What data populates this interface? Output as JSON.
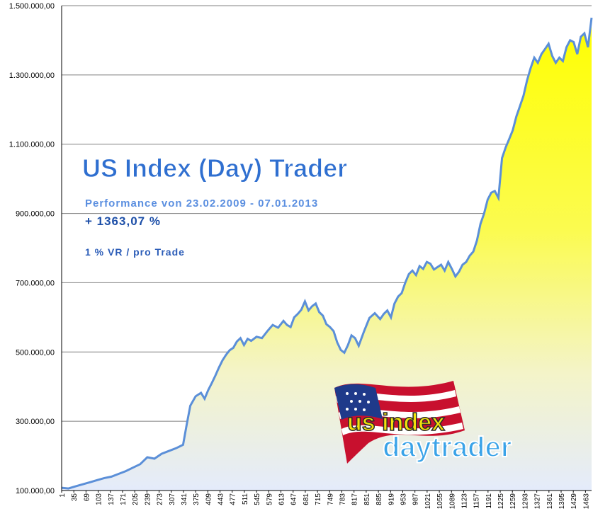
{
  "chart_data": {
    "type": "area",
    "title": "US Index (Day) Trader",
    "subtitle": "Performance  von  23.02.2009 - 07.01.2013",
    "performance": "+ 1363,07 %",
    "risk_note": "1 % VR / pro Trade",
    "logo_text_top": "us index",
    "logo_text_bottom": "daytrader",
    "ylim": [
      100000,
      1500000
    ],
    "xlim": [
      1,
      1480
    ],
    "y_ticks": [
      "100.000,00",
      "300.000,00",
      "500.000,00",
      "700.000,00",
      "900.000,00",
      "1.100.000,00",
      "1.300.000,00",
      "1.500.000,00"
    ],
    "y_tick_values": [
      100000,
      300000,
      500000,
      700000,
      900000,
      1100000,
      1300000,
      1500000
    ],
    "x_ticks": [
      "1",
      "35",
      "69",
      "103",
      "137",
      "171",
      "205",
      "239",
      "273",
      "307",
      "341",
      "375",
      "409",
      "443",
      "477",
      "511",
      "545",
      "579",
      "613",
      "647",
      "681",
      "715",
      "749",
      "783",
      "817",
      "851",
      "885",
      "919",
      "953",
      "987",
      "1021",
      "1055",
      "1089",
      "1123",
      "1157",
      "1191",
      "1225",
      "1259",
      "1293",
      "1327",
      "1361",
      "1395",
      "1429",
      "1463"
    ],
    "grid": true,
    "legend": "none",
    "colors": {
      "line": "#5b8fd8",
      "fill_top": "#ffff00",
      "fill_bottom": "#e8eefc",
      "grid": "#808080"
    },
    "series": [
      {
        "x": [
          1,
          20,
          40,
          60,
          80,
          100,
          120,
          140,
          160,
          180,
          200,
          220,
          240,
          260,
          280,
          300,
          320,
          340,
          350,
          360,
          375,
          390,
          400,
          410,
          420,
          430,
          440,
          450,
          460,
          470,
          480,
          490,
          500,
          510,
          520,
          530,
          545,
          560,
          575,
          590,
          605,
          620,
          630,
          640,
          650,
          660,
          670,
          680,
          690,
          700,
          710,
          720,
          730,
          740,
          750,
          760,
          770,
          780,
          790,
          800,
          810,
          820,
          830,
          845,
          860,
          875,
          890,
          900,
          910,
          920,
          930,
          940,
          950,
          960,
          970,
          980,
          990,
          1000,
          1010,
          1020,
          1030,
          1040,
          1050,
          1060,
          1070,
          1080,
          1090,
          1100,
          1110,
          1120,
          1130,
          1140,
          1150,
          1160,
          1170,
          1180,
          1190,
          1200,
          1210,
          1220,
          1230,
          1240,
          1250,
          1260,
          1270,
          1280,
          1290,
          1300,
          1310,
          1320,
          1330,
          1340,
          1350,
          1360,
          1370,
          1380,
          1390,
          1400,
          1410,
          1420,
          1430,
          1440,
          1450,
          1460,
          1470,
          1480
        ],
        "y": [
          108000,
          106000,
          112000,
          118000,
          124000,
          130000,
          136000,
          140000,
          148000,
          156000,
          166000,
          176000,
          196000,
          192000,
          206000,
          214000,
          222000,
          232000,
          290000,
          345000,
          372000,
          382000,
          365000,
          390000,
          410000,
          432000,
          455000,
          476000,
          492000,
          505000,
          512000,
          530000,
          540000,
          520000,
          538000,
          532000,
          544000,
          540000,
          560000,
          578000,
          570000,
          590000,
          578000,
          572000,
          600000,
          610000,
          622000,
          646000,
          620000,
          632000,
          640000,
          615000,
          605000,
          580000,
          572000,
          560000,
          528000,
          506000,
          498000,
          520000,
          548000,
          540000,
          518000,
          560000,
          598000,
          612000,
          595000,
          610000,
          620000,
          600000,
          640000,
          660000,
          670000,
          700000,
          725000,
          735000,
          722000,
          748000,
          740000,
          760000,
          755000,
          738000,
          745000,
          752000,
          735000,
          760000,
          740000,
          718000,
          732000,
          752000,
          760000,
          778000,
          790000,
          822000,
          870000,
          900000,
          940000,
          960000,
          965000,
          945000,
          1060000,
          1090000,
          1115000,
          1140000,
          1180000,
          1210000,
          1240000,
          1285000,
          1320000,
          1350000,
          1335000,
          1360000,
          1375000,
          1390000,
          1355000,
          1335000,
          1350000,
          1340000,
          1380000,
          1400000,
          1395000,
          1360000,
          1410000,
          1420000,
          1380000,
          1465000
        ]
      }
    ]
  }
}
